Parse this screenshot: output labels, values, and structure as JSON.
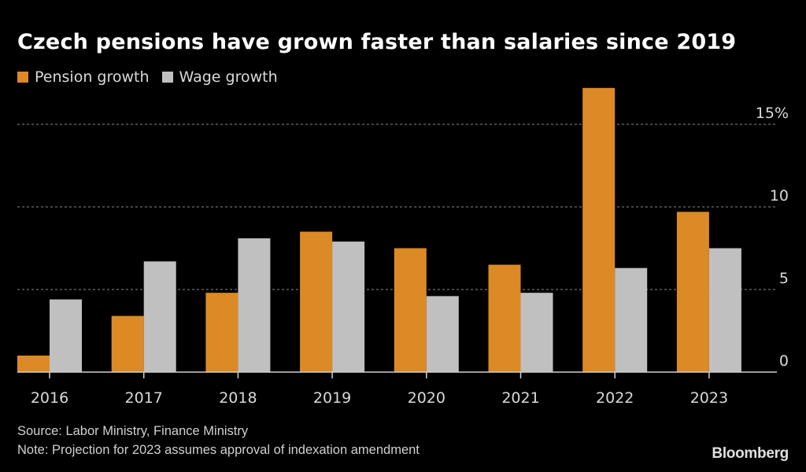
{
  "chart_data": {
    "type": "bar",
    "title": "Czech pensions have grown faster than salaries since 2019",
    "xlabel": "",
    "ylabel": "",
    "categories": [
      "2016",
      "2017",
      "2018",
      "2019",
      "2020",
      "2021",
      "2022",
      "2023"
    ],
    "series": [
      {
        "name": "Pension growth",
        "color": "#db8a26",
        "values": [
          1.0,
          3.4,
          4.8,
          8.5,
          7.5,
          6.5,
          17.2,
          9.7
        ]
      },
      {
        "name": "Wage growth",
        "color": "#c0c0c0",
        "values": [
          4.4,
          6.7,
          8.1,
          7.9,
          4.6,
          4.8,
          6.3,
          7.5
        ]
      }
    ],
    "ylim": [
      0,
      17.5
    ],
    "yticks": [
      {
        "value": 0,
        "label": "0"
      },
      {
        "value": 5,
        "label": "5"
      },
      {
        "value": 10,
        "label": "10"
      },
      {
        "value": 15,
        "label": "15%"
      }
    ],
    "grid": true,
    "legend_position": "top-left",
    "y_axis_position": "right"
  },
  "footer": {
    "source": "Source: Labor Ministry, Finance Ministry",
    "note": "Note: Projection for 2023 assumes approval of indexation amendment"
  },
  "brand": "Bloomberg"
}
